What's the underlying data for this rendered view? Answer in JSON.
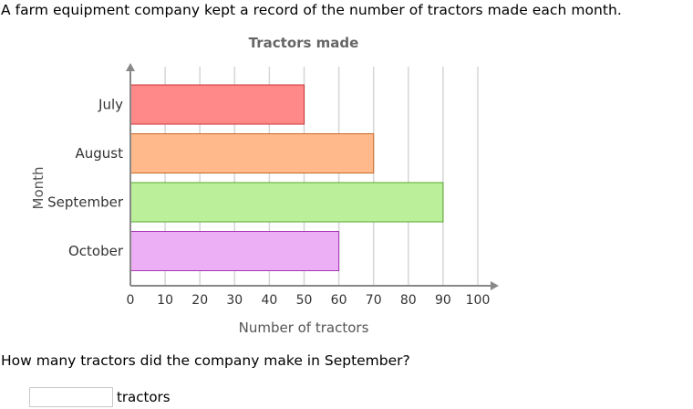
{
  "intro_text": "A farm equipment company kept a record of the number of tractors made each month.",
  "question_text": "How many tractors did the company make in September?",
  "answer": {
    "value": "",
    "unit": "tractors"
  },
  "chart_data": {
    "type": "bar",
    "orientation": "horizontal",
    "title": "Tractors made",
    "xlabel": "Number of tractors",
    "ylabel": "Month",
    "categories": [
      "July",
      "August",
      "September",
      "October"
    ],
    "values": [
      50,
      70,
      90,
      60
    ],
    "xlim": [
      0,
      100
    ],
    "xticks": [
      0,
      10,
      20,
      30,
      40,
      50,
      60,
      70,
      80,
      90,
      100
    ],
    "grid": true,
    "colors": {
      "fills": [
        "#ff8888",
        "#ffb98a",
        "#bbef9a",
        "#ecaef4"
      ],
      "strokes": [
        "#cc3333",
        "#c7692a",
        "#5aa832",
        "#a637b5"
      ]
    }
  }
}
